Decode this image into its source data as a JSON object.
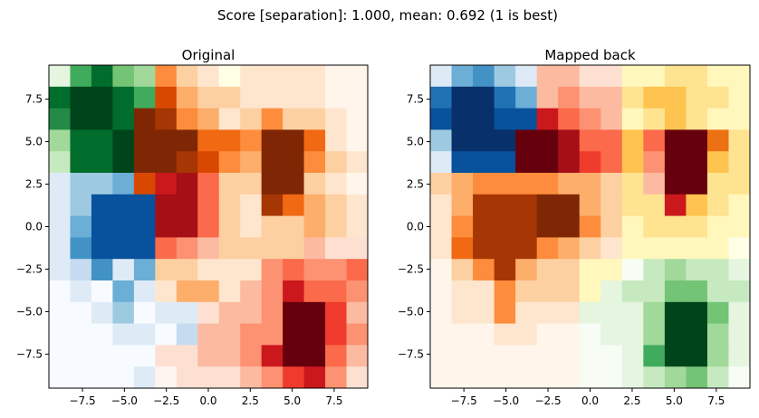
{
  "chart_data": {
    "type": "heatmap",
    "suptitle": "Score [separation]: 1.000, mean: 0.692 (1 is best)",
    "panels": [
      {
        "title": "Original",
        "xticks": [
          "−7.5",
          "−5.0",
          "−2.5",
          "0.0",
          "2.5",
          "5.0",
          "7.5"
        ],
        "yticks": [
          "7.5",
          "5.0",
          "2.5",
          "0.0",
          "−2.5",
          "−5.0",
          "−7.5"
        ],
        "cells": [
          "GGGGGOOOCOOOOOO",
          "GGGGGOOOOOOOOOO",
          "GGGGOOOOOOOOOOO",
          "GGGGOOOOOOOOOOO",
          "GGGGOOOOOOOOOOO",
          "BBBBORRROOOOOOO",
          "BBBBBRRROOOOOOO",
          "BBBBBRRROOOOOOO",
          "BBBBBRRROOOORRR",
          "BBBBBOOOOORRRRR",
          "BBBBBOOOORRRRRR",
          "BBBBBBBRRRRRRRR",
          "BBBBBBBRRRRRRRR",
          "BBBBBRRRRRRRRRR",
          "BBBBBRRRRRRRRRR"
        ],
        "levels": [
          [
            2,
            6,
            8,
            5,
            4,
            5,
            3,
            2,
            1,
            2,
            2,
            2,
            2,
            1,
            1
          ],
          [
            8,
            9,
            9,
            8,
            6,
            7,
            4,
            3,
            3,
            2,
            2,
            2,
            2,
            1,
            1
          ],
          [
            7,
            9,
            9,
            8,
            9,
            8,
            5,
            4,
            2,
            3,
            5,
            3,
            3,
            2,
            1
          ],
          [
            4,
            8,
            8,
            9,
            9,
            9,
            9,
            6,
            6,
            5,
            9,
            9,
            6,
            2,
            1
          ],
          [
            3,
            8,
            8,
            9,
            9,
            9,
            8,
            7,
            5,
            4,
            9,
            9,
            5,
            3,
            2
          ],
          [
            2,
            4,
            4,
            5,
            7,
            7,
            8,
            5,
            3,
            3,
            9,
            9,
            3,
            2,
            1
          ],
          [
            2,
            4,
            8,
            8,
            8,
            8,
            8,
            5,
            3,
            2,
            8,
            6,
            4,
            3,
            2
          ],
          [
            2,
            5,
            8,
            8,
            8,
            8,
            8,
            5,
            3,
            2,
            3,
            3,
            4,
            3,
            2
          ],
          [
            2,
            6,
            8,
            8,
            8,
            5,
            4,
            3,
            3,
            3,
            3,
            3,
            3,
            2,
            2
          ],
          [
            2,
            3,
            6,
            2,
            5,
            3,
            3,
            2,
            2,
            2,
            4,
            5,
            4,
            4,
            5
          ],
          [
            1,
            2,
            1,
            5,
            2,
            2,
            4,
            4,
            2,
            3,
            4,
            7,
            5,
            5,
            4
          ],
          [
            1,
            1,
            2,
            4,
            1,
            2,
            2,
            2,
            3,
            3,
            4,
            9,
            9,
            6,
            3
          ],
          [
            1,
            1,
            1,
            2,
            2,
            1,
            3,
            3,
            3,
            4,
            4,
            9,
            9,
            6,
            4
          ],
          [
            1,
            1,
            1,
            1,
            1,
            2,
            2,
            3,
            3,
            4,
            7,
            9,
            9,
            5,
            3
          ],
          [
            1,
            1,
            1,
            1,
            2,
            1,
            2,
            2,
            2,
            3,
            4,
            6,
            7,
            4,
            2
          ]
        ]
      },
      {
        "title": "Mapped back",
        "xticks": [
          "−7.5",
          "−5.0",
          "−2.5",
          "0.0",
          "2.5",
          "5.0",
          "7.5"
        ],
        "yticks": [
          "7.5",
          "5.0",
          "2.5",
          "0.0",
          "−2.5",
          "−5.0",
          "−7.5"
        ],
        "cells": [
          "BBBBBRRRRCCCCCC",
          "BBBBBRRRRCCCCCC",
          "BBBBBRRRRCCCCCC",
          "BBBBRRRRRCRRRCC",
          "BBBBRRRRRCRRRCC",
          "OOOOOOOOOCRRRCC",
          "OOOOOOOOOCCRCCC",
          "OOOOOOOOOCCCCCC",
          "OOOOOOOOOCCCCCC",
          "OOOOOOOCCGGGGGG",
          "OOOOOOOCGGGGGGG",
          "OOOOOOOGGGGGGGG",
          "OOOOOOOGGGGGGGG",
          "OOOOOOOGGGGGGGG",
          "OOOOOOOGGGGGGGG"
        ],
        "levels": [
          [
            2,
            5,
            6,
            4,
            2,
            3,
            3,
            2,
            2,
            2,
            2,
            3,
            3,
            2,
            2
          ],
          [
            7,
            9,
            9,
            7,
            5,
            3,
            4,
            3,
            3,
            3,
            4,
            4,
            3,
            3,
            2
          ],
          [
            8,
            9,
            9,
            8,
            8,
            7,
            5,
            4,
            3,
            2,
            3,
            4,
            3,
            2,
            2
          ],
          [
            4,
            9,
            9,
            9,
            9,
            9,
            8,
            5,
            5,
            4,
            5,
            9,
            9,
            6,
            3
          ],
          [
            2,
            8,
            8,
            8,
            9,
            9,
            8,
            6,
            5,
            4,
            4,
            9,
            9,
            4,
            3
          ],
          [
            3,
            4,
            5,
            5,
            5,
            5,
            4,
            4,
            3,
            3,
            3,
            9,
            9,
            3,
            3
          ],
          [
            2,
            4,
            8,
            8,
            8,
            9,
            9,
            4,
            3,
            3,
            3,
            7,
            4,
            3,
            2
          ],
          [
            2,
            5,
            8,
            8,
            8,
            9,
            9,
            5,
            3,
            2,
            3,
            3,
            3,
            2,
            2
          ],
          [
            2,
            6,
            8,
            8,
            8,
            5,
            4,
            3,
            2,
            2,
            2,
            2,
            2,
            2,
            1
          ],
          [
            1,
            3,
            5,
            8,
            4,
            3,
            3,
            2,
            2,
            1,
            3,
            4,
            3,
            3,
            2
          ],
          [
            1,
            2,
            2,
            5,
            3,
            3,
            3,
            2,
            2,
            3,
            3,
            5,
            5,
            3,
            3
          ],
          [
            1,
            2,
            2,
            5,
            2,
            2,
            2,
            2,
            2,
            2,
            4,
            9,
            9,
            5,
            2
          ],
          [
            1,
            1,
            1,
            2,
            2,
            1,
            1,
            1,
            2,
            2,
            4,
            9,
            9,
            4,
            2
          ],
          [
            1,
            1,
            1,
            1,
            1,
            1,
            1,
            1,
            1,
            2,
            6,
            9,
            9,
            4,
            2
          ],
          [
            1,
            1,
            1,
            1,
            1,
            1,
            1,
            1,
            1,
            2,
            3,
            4,
            5,
            3,
            1
          ]
        ]
      }
    ]
  }
}
